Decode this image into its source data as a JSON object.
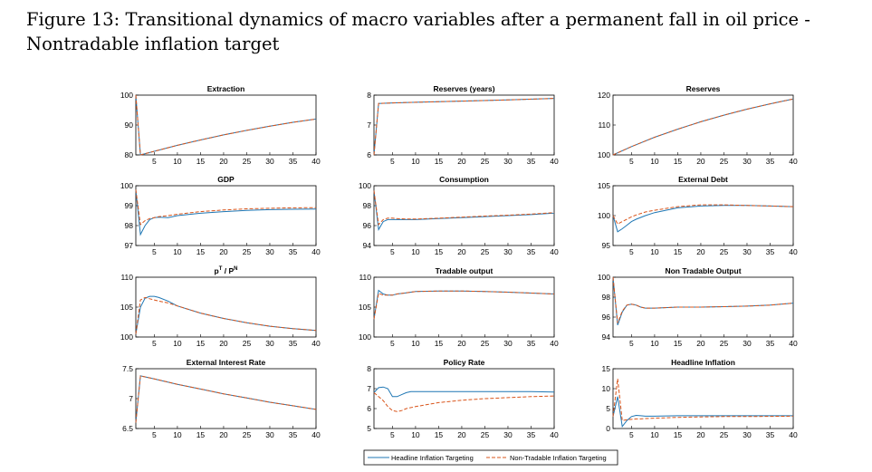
{
  "figure": {
    "title_line1": "Figure 13: Transitional dynamics of macro variables after a permanent fall in oil price -",
    "title_line2": "Nontradable inflation target"
  },
  "legend": {
    "headline": "Headline Inflation Targeting",
    "nontradable": "Non-Tradable Inflation Targeting"
  },
  "colors": {
    "headline": "#1f77b4",
    "nontradable": "#d9541a",
    "frame": "#000000",
    "background": "#ffffff"
  },
  "chart_data": [
    {
      "type": "line",
      "title": "Extraction",
      "title_sup": null,
      "xlim": [
        1,
        40
      ],
      "ylim": [
        80,
        100
      ],
      "yticks": [
        80,
        90,
        100
      ],
      "xticks": [
        5,
        10,
        15,
        20,
        25,
        30,
        35,
        40
      ],
      "series": [
        {
          "name": "Headline Inflation Targeting",
          "x": [
            1,
            2,
            5,
            10,
            15,
            20,
            25,
            30,
            35,
            40
          ],
          "values": [
            100,
            80,
            81.2,
            83.2,
            85,
            86.7,
            88.2,
            89.6,
            90.9,
            92
          ]
        },
        {
          "name": "Non-Tradable Inflation Targeting",
          "x": [
            1,
            2,
            5,
            10,
            15,
            20,
            25,
            30,
            35,
            40
          ],
          "values": [
            100,
            80,
            81.2,
            83.2,
            85,
            86.7,
            88.2,
            89.6,
            90.9,
            92
          ]
        }
      ]
    },
    {
      "type": "line",
      "title": "Reserves (years)",
      "title_sup": null,
      "xlim": [
        1,
        40
      ],
      "ylim": [
        6,
        8
      ],
      "yticks": [
        6,
        7,
        8
      ],
      "xticks": [
        5,
        10,
        15,
        20,
        25,
        30,
        35,
        40
      ],
      "series": [
        {
          "name": "Headline Inflation Targeting",
          "x": [
            1,
            2,
            5,
            10,
            20,
            30,
            40
          ],
          "values": [
            6,
            7.72,
            7.74,
            7.76,
            7.8,
            7.84,
            7.89
          ]
        },
        {
          "name": "Non-Tradable Inflation Targeting",
          "x": [
            1,
            2,
            5,
            10,
            20,
            30,
            40
          ],
          "values": [
            6,
            7.72,
            7.74,
            7.76,
            7.8,
            7.84,
            7.89
          ]
        }
      ]
    },
    {
      "type": "line",
      "title": "Reserves",
      "title_sup": null,
      "xlim": [
        1,
        40
      ],
      "ylim": [
        100,
        120
      ],
      "yticks": [
        100,
        110,
        120
      ],
      "xticks": [
        5,
        10,
        15,
        20,
        25,
        30,
        35,
        40
      ],
      "series": [
        {
          "name": "Headline Inflation Targeting",
          "x": [
            1,
            5,
            10,
            15,
            20,
            25,
            30,
            35,
            40
          ],
          "values": [
            100,
            102.8,
            105.9,
            108.6,
            111.1,
            113.3,
            115.3,
            117.1,
            118.7
          ]
        },
        {
          "name": "Non-Tradable Inflation Targeting",
          "x": [
            1,
            5,
            10,
            15,
            20,
            25,
            30,
            35,
            40
          ],
          "values": [
            100,
            102.8,
            105.9,
            108.6,
            111.1,
            113.3,
            115.3,
            117.1,
            118.7
          ]
        }
      ]
    },
    {
      "type": "line",
      "title": "GDP",
      "title_sup": null,
      "xlim": [
        1,
        40
      ],
      "ylim": [
        97,
        100
      ],
      "yticks": [
        97,
        98,
        99,
        100
      ],
      "xticks": [
        5,
        10,
        15,
        20,
        25,
        30,
        35,
        40
      ],
      "series": [
        {
          "name": "Headline Inflation Targeting",
          "x": [
            1,
            2,
            3,
            4,
            5,
            6,
            8,
            10,
            15,
            20,
            25,
            30,
            35,
            40
          ],
          "values": [
            99.8,
            97.55,
            98.0,
            98.3,
            98.4,
            98.42,
            98.4,
            98.5,
            98.62,
            98.7,
            98.76,
            98.8,
            98.82,
            98.83
          ]
        },
        {
          "name": "Non-Tradable Inflation Targeting",
          "x": [
            1,
            2,
            3,
            4,
            5,
            6,
            8,
            10,
            15,
            20,
            25,
            30,
            35,
            40
          ],
          "values": [
            99.8,
            98.05,
            98.25,
            98.35,
            98.4,
            98.45,
            98.5,
            98.57,
            98.7,
            98.78,
            98.84,
            98.87,
            98.89,
            98.9
          ]
        }
      ]
    },
    {
      "type": "line",
      "title": "Consumption",
      "title_sup": null,
      "xlim": [
        1,
        40
      ],
      "ylim": [
        94,
        100
      ],
      "yticks": [
        94,
        96,
        98,
        100
      ],
      "xticks": [
        5,
        10,
        15,
        20,
        25,
        30,
        35,
        40
      ],
      "series": [
        {
          "name": "Headline Inflation Targeting",
          "x": [
            1,
            2,
            3,
            4,
            5,
            6,
            8,
            10,
            15,
            20,
            25,
            30,
            35,
            40
          ],
          "values": [
            99.5,
            95.6,
            96.4,
            96.6,
            96.6,
            96.6,
            96.6,
            96.6,
            96.7,
            96.8,
            96.9,
            97.0,
            97.1,
            97.25
          ]
        },
        {
          "name": "Non-Tradable Inflation Targeting",
          "x": [
            1,
            2,
            3,
            4,
            5,
            6,
            8,
            10,
            15,
            20,
            25,
            30,
            35,
            40
          ],
          "values": [
            99.5,
            96.1,
            96.6,
            96.75,
            96.75,
            96.7,
            96.65,
            96.65,
            96.75,
            96.85,
            96.95,
            97.05,
            97.15,
            97.3
          ]
        }
      ]
    },
    {
      "type": "line",
      "title": "External Debt",
      "title_sup": null,
      "xlim": [
        1,
        40
      ],
      "ylim": [
        95,
        105
      ],
      "yticks": [
        95,
        100,
        105
      ],
      "xticks": [
        5,
        10,
        15,
        20,
        25,
        30,
        35,
        40
      ],
      "series": [
        {
          "name": "Headline Inflation Targeting",
          "x": [
            1,
            2,
            3,
            4,
            5,
            6,
            8,
            10,
            15,
            20,
            25,
            30,
            35,
            40
          ],
          "values": [
            100,
            97.3,
            97.8,
            98.4,
            99,
            99.4,
            100,
            100.5,
            101.3,
            101.6,
            101.7,
            101.7,
            101.6,
            101.5
          ]
        },
        {
          "name": "Non-Tradable Inflation Targeting",
          "x": [
            1,
            2,
            3,
            4,
            5,
            6,
            8,
            10,
            15,
            20,
            25,
            30,
            35,
            40
          ],
          "values": [
            100,
            98.6,
            99.0,
            99.4,
            99.8,
            100.1,
            100.6,
            100.9,
            101.5,
            101.8,
            101.8,
            101.7,
            101.6,
            101.5
          ]
        }
      ]
    },
    {
      "type": "line",
      "title": "p",
      "title_sup": "T",
      "title_mid": " / P",
      "title_sup2": "N",
      "xlim": [
        1,
        40
      ],
      "ylim": [
        100,
        110
      ],
      "yticks": [
        100,
        105,
        110
      ],
      "xticks": [
        5,
        10,
        15,
        20,
        25,
        30,
        35,
        40
      ],
      "series": [
        {
          "name": "Headline Inflation Targeting",
          "x": [
            1,
            2,
            3,
            4,
            5,
            6,
            8,
            10,
            15,
            20,
            25,
            30,
            35,
            40
          ],
          "values": [
            100.5,
            105.0,
            106.5,
            106.8,
            106.8,
            106.6,
            106.0,
            105.2,
            104,
            103.1,
            102.4,
            101.8,
            101.4,
            101.1
          ]
        },
        {
          "name": "Non-Tradable Inflation Targeting",
          "x": [
            1,
            2,
            3,
            4,
            5,
            6,
            8,
            10,
            15,
            20,
            25,
            30,
            35,
            40
          ],
          "values": [
            100.5,
            106.2,
            106.6,
            106.4,
            106.2,
            106.0,
            105.7,
            105.2,
            104,
            103.1,
            102.4,
            101.8,
            101.4,
            101.1
          ]
        }
      ]
    },
    {
      "type": "line",
      "title": "Tradable output",
      "title_sup": null,
      "xlim": [
        1,
        40
      ],
      "ylim": [
        100,
        110
      ],
      "yticks": [
        100,
        105,
        110
      ],
      "xticks": [
        5,
        10,
        15,
        20,
        25,
        30,
        35,
        40
      ],
      "series": [
        {
          "name": "Headline Inflation Targeting",
          "x": [
            1,
            2,
            3,
            4,
            5,
            6,
            8,
            10,
            15,
            20,
            25,
            30,
            35,
            40
          ],
          "values": [
            103,
            107.8,
            107.2,
            107,
            107,
            107.2,
            107.4,
            107.6,
            107.7,
            107.7,
            107.6,
            107.5,
            107.35,
            107.2
          ]
        },
        {
          "name": "Non-Tradable Inflation Targeting",
          "x": [
            1,
            2,
            3,
            4,
            5,
            6,
            8,
            10,
            15,
            20,
            25,
            30,
            35,
            40
          ],
          "values": [
            103,
            107.3,
            107,
            107,
            107,
            107.2,
            107.4,
            107.6,
            107.7,
            107.7,
            107.6,
            107.5,
            107.35,
            107.2
          ]
        }
      ]
    },
    {
      "type": "line",
      "title": "Non Tradable Output",
      "title_sup": null,
      "xlim": [
        1,
        40
      ],
      "ylim": [
        94,
        100
      ],
      "yticks": [
        94,
        96,
        98,
        100
      ],
      "xticks": [
        5,
        10,
        15,
        20,
        25,
        30,
        35,
        40
      ],
      "series": [
        {
          "name": "Headline Inflation Targeting",
          "x": [
            1,
            2,
            3,
            4,
            5,
            6,
            7,
            8,
            10,
            15,
            20,
            25,
            30,
            35,
            40
          ],
          "values": [
            100,
            95.2,
            96.5,
            97.2,
            97.3,
            97.2,
            97.0,
            96.9,
            96.9,
            97,
            97,
            97.05,
            97.1,
            97.2,
            97.4
          ]
        },
        {
          "name": "Non-Tradable Inflation Targeting",
          "x": [
            1,
            2,
            3,
            4,
            5,
            6,
            7,
            8,
            10,
            15,
            20,
            25,
            30,
            35,
            40
          ],
          "values": [
            100,
            95.4,
            96.6,
            97.2,
            97.3,
            97.2,
            97.0,
            96.9,
            96.9,
            97,
            97,
            97.05,
            97.1,
            97.2,
            97.4
          ]
        }
      ]
    },
    {
      "type": "line",
      "title": "External Interest Rate",
      "title_sup": null,
      "xlim": [
        1,
        40
      ],
      "ylim": [
        6.5,
        7.5
      ],
      "yticks": [
        6.5,
        7,
        7.5
      ],
      "xticks": [
        5,
        10,
        15,
        20,
        25,
        30,
        35,
        40
      ],
      "series": [
        {
          "name": "Headline Inflation Targeting",
          "x": [
            1,
            2,
            5,
            10,
            15,
            20,
            25,
            30,
            35,
            40
          ],
          "values": [
            6.6,
            7.38,
            7.33,
            7.24,
            7.16,
            7.08,
            7.01,
            6.94,
            6.88,
            6.82
          ]
        },
        {
          "name": "Non-Tradable Inflation Targeting",
          "x": [
            1,
            2,
            5,
            10,
            15,
            20,
            25,
            30,
            35,
            40
          ],
          "values": [
            6.6,
            7.38,
            7.33,
            7.24,
            7.16,
            7.08,
            7.01,
            6.94,
            6.88,
            6.82
          ]
        }
      ]
    },
    {
      "type": "line",
      "title": "Policy Rate",
      "title_sup": null,
      "xlim": [
        1,
        40
      ],
      "ylim": [
        5,
        8
      ],
      "yticks": [
        5,
        6,
        7,
        8
      ],
      "xticks": [
        5,
        10,
        15,
        20,
        25,
        30,
        35,
        40
      ],
      "series": [
        {
          "name": "Headline Inflation Targeting",
          "x": [
            1,
            2,
            3,
            4,
            5,
            6,
            7,
            8,
            9,
            10,
            15,
            20,
            25,
            30,
            35,
            40
          ],
          "values": [
            6.8,
            7.05,
            7.08,
            7.0,
            6.6,
            6.6,
            6.7,
            6.8,
            6.85,
            6.85,
            6.85,
            6.85,
            6.85,
            6.85,
            6.85,
            6.83
          ]
        },
        {
          "name": "Non-Tradable Inflation Targeting",
          "x": [
            1,
            2,
            3,
            4,
            5,
            6,
            7,
            8,
            10,
            15,
            20,
            25,
            30,
            35,
            40
          ],
          "values": [
            6.8,
            6.6,
            6.4,
            6.1,
            5.9,
            5.85,
            5.9,
            6.0,
            6.1,
            6.3,
            6.42,
            6.5,
            6.55,
            6.6,
            6.63
          ]
        }
      ]
    },
    {
      "type": "line",
      "title": "Headline Inflation",
      "title_sup": null,
      "xlim": [
        1,
        40
      ],
      "ylim": [
        0,
        15
      ],
      "yticks": [
        0,
        5,
        10,
        15
      ],
      "xticks": [
        5,
        10,
        15,
        20,
        25,
        30,
        35,
        40
      ],
      "series": [
        {
          "name": "Headline Inflation Targeting",
          "x": [
            1,
            2,
            3,
            4,
            5,
            6,
            7,
            8,
            10,
            15,
            20,
            25,
            30,
            35,
            40
          ],
          "values": [
            3,
            8,
            0.5,
            2,
            3,
            3.3,
            3.2,
            3.1,
            3.1,
            3.2,
            3.2,
            3.2,
            3.2,
            3.2,
            3.2
          ]
        },
        {
          "name": "Non-Tradable Inflation Targeting",
          "x": [
            1,
            2,
            3,
            4,
            5,
            6,
            7,
            8,
            10,
            15,
            20,
            25,
            30,
            35,
            40
          ],
          "values": [
            3,
            12.5,
            2,
            2.2,
            2.3,
            2.4,
            2.4,
            2.5,
            2.6,
            2.8,
            2.9,
            3.0,
            3.0,
            3.05,
            3.1
          ]
        }
      ]
    }
  ]
}
